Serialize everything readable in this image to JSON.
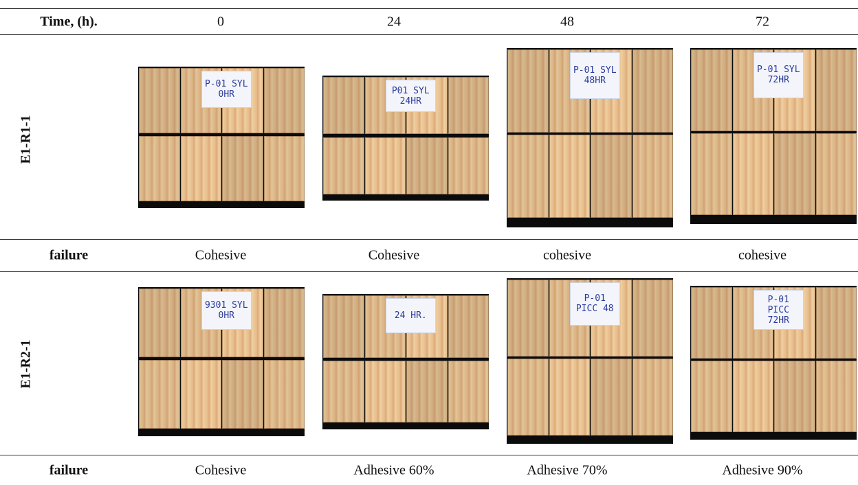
{
  "table": {
    "header": [
      "Time, (h).",
      "0",
      "24",
      "48",
      "72"
    ],
    "rows": [
      {
        "sample": "E1-R1-1",
        "photo_labels": [
          "P-01 SYL 0HR",
          "P01 SYL 24HR",
          "P-01 SYL 48HR",
          "P-01 SYL 72HR"
        ]
      },
      {
        "label": "failure",
        "results": [
          "Cohesive",
          "Cohesive",
          "cohesive",
          "cohesive"
        ]
      },
      {
        "sample": "E1-R2-1",
        "photo_labels": [
          "9301 SYL 0HR",
          "24 HR.",
          "P-01 PICC 48",
          "P-01 PICC 72HR"
        ]
      },
      {
        "label": "failure",
        "results": [
          "Cohesive",
          "Adhesive 60%",
          "Adhesive 70%",
          "Adhesive 90%"
        ]
      }
    ]
  }
}
